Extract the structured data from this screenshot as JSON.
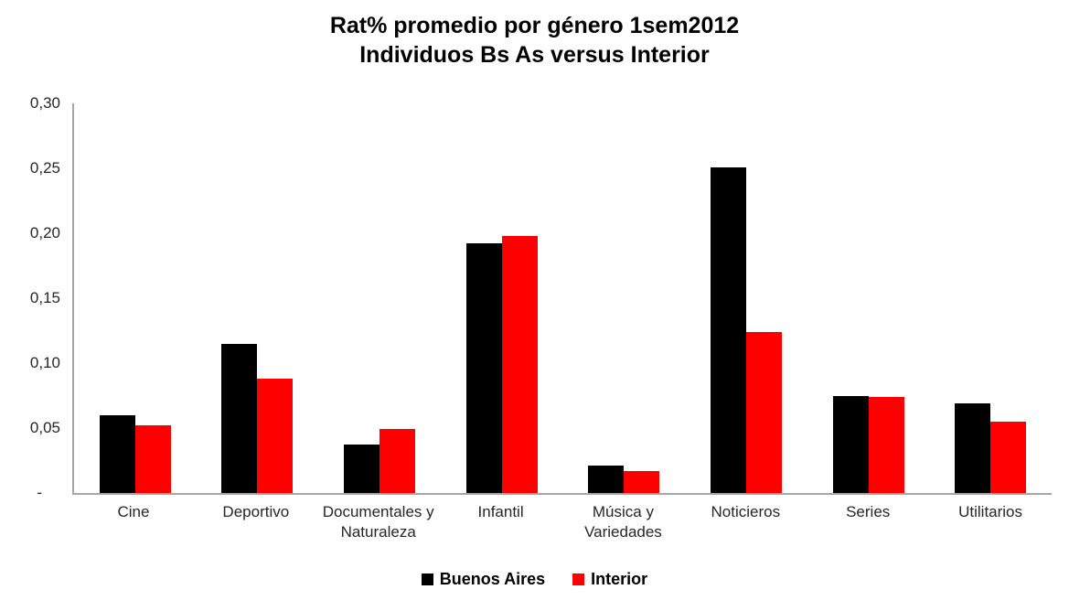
{
  "title": {
    "line1": "Rat% promedio por género 1sem2012",
    "line2": "Individuos Bs As versus Interior"
  },
  "colors": {
    "buenos_aires": "#000000",
    "interior": "#ff0000",
    "axis": "#a6a6a6",
    "tick_text": "#262626"
  },
  "chart_data": {
    "type": "bar",
    "title": "Rat% promedio por género 1sem2012",
    "subtitle": "Individuos Bs As versus Interior",
    "categories": [
      "Cine",
      "Deportivo",
      "Documentales y Naturaleza",
      "Infantil",
      "Música y Variedades",
      "Noticieros",
      "Series",
      "Utilitarios"
    ],
    "series": [
      {
        "name": "Buenos Aires",
        "color": "#000000",
        "values": [
          0.06,
          0.115,
          0.037,
          0.192,
          0.021,
          0.251,
          0.075,
          0.069
        ]
      },
      {
        "name": "Interior",
        "color": "#ff0000",
        "values": [
          0.052,
          0.088,
          0.049,
          0.198,
          0.017,
          0.124,
          0.074,
          0.055
        ]
      }
    ],
    "ylim": [
      0,
      0.3
    ],
    "y_ticks": [
      0.3,
      0.25,
      0.2,
      0.15,
      0.1,
      0.05,
      0
    ],
    "y_tick_labels": [
      "0,30",
      "0,25",
      "0,20",
      "0,15",
      "0,10",
      "0,05",
      "-"
    ],
    "grid": false,
    "legend_position": "bottom"
  }
}
